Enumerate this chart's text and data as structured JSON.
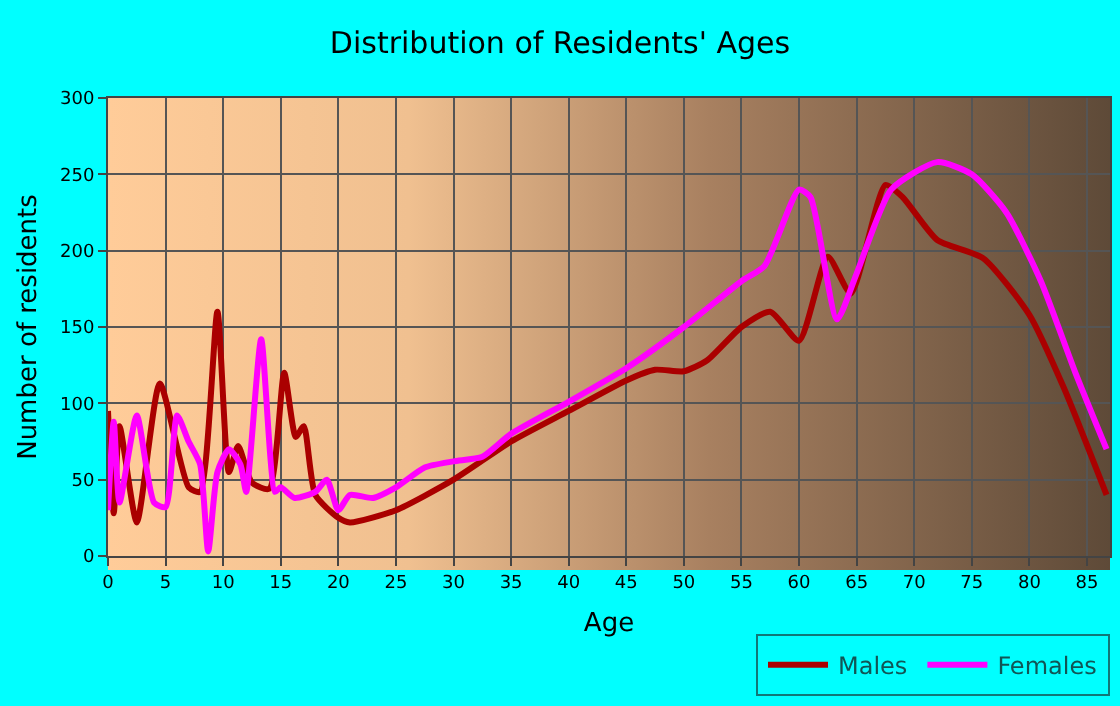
{
  "chart_data": {
    "type": "line",
    "title": "Distribution of Residents' Ages",
    "xlabel": "Age",
    "ylabel": "Number of residents",
    "xlim": [
      0,
      87
    ],
    "xticks": [
      0,
      5,
      10,
      15,
      20,
      25,
      30,
      35,
      40,
      45,
      50,
      55,
      60,
      65,
      70,
      75,
      80,
      85
    ],
    "ylim": [
      0,
      300
    ],
    "yticks": [
      0,
      50,
      100,
      150,
      200,
      250,
      300
    ],
    "grid": true,
    "legend": "bottom right",
    "marker": "none",
    "line_style": "solid",
    "series": [
      {
        "name": "Males",
        "color": "#aa0000",
        "x": [
          0,
          0.5,
          1,
          2.5,
          4.5,
          7,
          8,
          9.5,
          10.5,
          11.3,
          12.5,
          14,
          15.3,
          16.3,
          17,
          18,
          20,
          21,
          25,
          30,
          35,
          40,
          45,
          47.5,
          50,
          52,
          55,
          57.5,
          60,
          62.5,
          64.5,
          67.5,
          69,
          72,
          76,
          80,
          83,
          86.7
        ],
        "values": [
          95,
          28,
          85,
          22,
          113,
          45,
          42,
          160,
          55,
          72,
          48,
          44,
          120,
          78,
          85,
          40,
          25,
          22,
          30,
          50,
          75,
          95,
          115,
          122,
          121,
          128,
          150,
          160,
          141,
          196,
          172,
          243,
          235,
          207,
          195,
          158,
          110,
          40
        ]
      },
      {
        "name": "Females",
        "color": "#ff00ff",
        "x": [
          0,
          0.5,
          1,
          2.5,
          4,
          5,
          6,
          7,
          8,
          8.7,
          9.5,
          10.5,
          11.5,
          12,
          13.3,
          14.5,
          15,
          16.2,
          18,
          19,
          20,
          21,
          23,
          25,
          27.5,
          30,
          32.5,
          35,
          40,
          45,
          50,
          55,
          57,
          60,
          61,
          63.3,
          65,
          68,
          72,
          75,
          78,
          81,
          84,
          86.7
        ],
        "values": [
          30,
          88,
          35,
          92,
          35,
          32,
          92,
          75,
          60,
          3,
          55,
          70,
          60,
          42,
          142,
          42,
          45,
          38,
          42,
          50,
          30,
          40,
          38,
          45,
          58,
          62,
          65,
          80,
          101,
          123,
          150,
          180,
          190,
          240,
          235,
          155,
          185,
          240,
          258,
          250,
          225,
          180,
          120,
          70
        ]
      }
    ]
  }
}
